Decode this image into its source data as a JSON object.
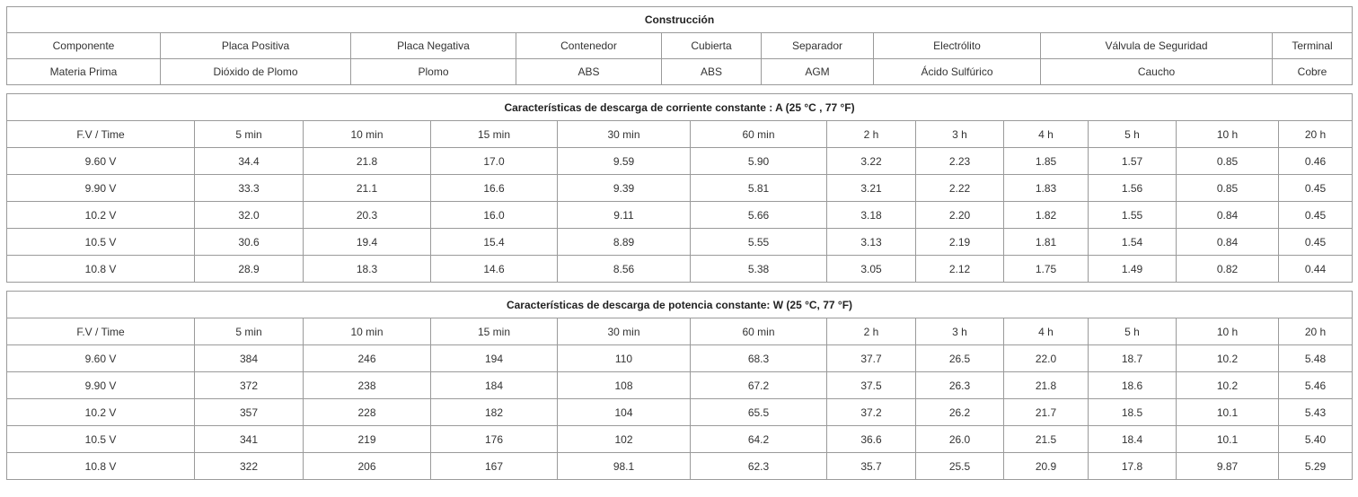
{
  "construction": {
    "title": "Construcción",
    "components": [
      "Componente",
      "Placa Positiva",
      "Placa Negativa",
      "Contenedor",
      "Cubierta",
      "Separador",
      "Electrólito",
      "Válvula de Seguridad",
      "Terminal"
    ],
    "materials": [
      "Materia Prima",
      "Dióxido de Plomo",
      "Plomo",
      "ABS",
      "ABS",
      "AGM",
      "Ácido Sulfúrico",
      "Caucho",
      "Cobre"
    ]
  },
  "current_table": {
    "title": "Características de descarga de corriente constante : A (25 °C , 77 °F)",
    "headers": [
      "F.V / Time",
      "5 min",
      "10 min",
      "15 min",
      "30 min",
      "60 min",
      "2 h",
      "3 h",
      "4 h",
      "5 h",
      "10 h",
      "20 h"
    ],
    "rows": [
      [
        "9.60 V",
        "34.4",
        "21.8",
        "17.0",
        "9.59",
        "5.90",
        "3.22",
        "2.23",
        "1.85",
        "1.57",
        "0.85",
        "0.46"
      ],
      [
        "9.90 V",
        "33.3",
        "21.1",
        "16.6",
        "9.39",
        "5.81",
        "3.21",
        "2.22",
        "1.83",
        "1.56",
        "0.85",
        "0.45"
      ],
      [
        "10.2 V",
        "32.0",
        "20.3",
        "16.0",
        "9.11",
        "5.66",
        "3.18",
        "2.20",
        "1.82",
        "1.55",
        "0.84",
        "0.45"
      ],
      [
        "10.5 V",
        "30.6",
        "19.4",
        "15.4",
        "8.89",
        "5.55",
        "3.13",
        "2.19",
        "1.81",
        "1.54",
        "0.84",
        "0.45"
      ],
      [
        "10.8 V",
        "28.9",
        "18.3",
        "14.6",
        "8.56",
        "5.38",
        "3.05",
        "2.12",
        "1.75",
        "1.49",
        "0.82",
        "0.44"
      ]
    ]
  },
  "power_table": {
    "title": "Características de descarga de potencia constante: W (25 °C, 77 °F)",
    "headers": [
      "F.V / Time",
      "5 min",
      "10 min",
      "15 min",
      "30 min",
      "60 min",
      "2 h",
      "3 h",
      "4 h",
      "5 h",
      "10 h",
      "20 h"
    ],
    "rows": [
      [
        "9.60 V",
        "384",
        "246",
        "194",
        "110",
        "68.3",
        "37.7",
        "26.5",
        "22.0",
        "18.7",
        "10.2",
        "5.48"
      ],
      [
        "9.90 V",
        "372",
        "238",
        "184",
        "108",
        "67.2",
        "37.5",
        "26.3",
        "21.8",
        "18.6",
        "10.2",
        "5.46"
      ],
      [
        "10.2 V",
        "357",
        "228",
        "182",
        "104",
        "65.5",
        "37.2",
        "26.2",
        "21.7",
        "18.5",
        "10.1",
        "5.43"
      ],
      [
        "10.5 V",
        "341",
        "219",
        "176",
        "102",
        "64.2",
        "36.6",
        "26.0",
        "21.5",
        "18.4",
        "10.1",
        "5.40"
      ],
      [
        "10.8 V",
        "322",
        "206",
        "167",
        "98.1",
        "62.3",
        "35.7",
        "25.5",
        "20.9",
        "17.8",
        "9.87",
        "5.29"
      ]
    ]
  }
}
